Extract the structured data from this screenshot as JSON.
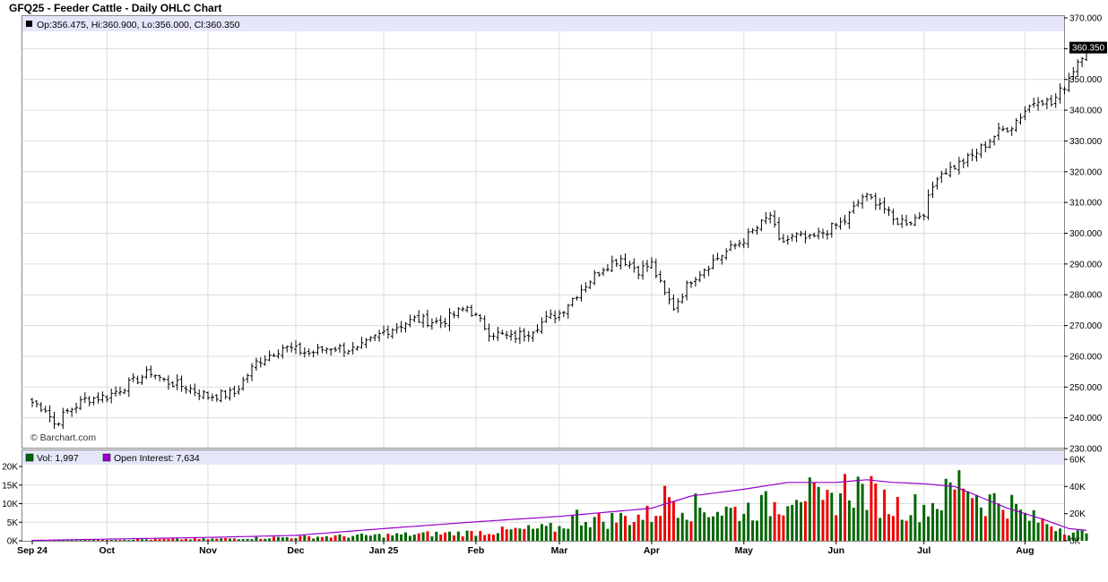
{
  "chart_data": {
    "type": "ohlc",
    "title": "GFQ25 - Feeder Cattle - Daily OHLC Chart",
    "watermark": "© Barchart.com",
    "info_bar": "Op:356.475, Hi:360.900, Lo:356.000, Cl:360.350",
    "last_price_label": "360.350",
    "price_axis": {
      "ylim": [
        230,
        370
      ],
      "ticks": [
        "230.000",
        "240.000",
        "250.000",
        "260.000",
        "270.000",
        "280.000",
        "290.000",
        "300.000",
        "310.000",
        "320.000",
        "330.000",
        "340.000",
        "350.000",
        "360.000",
        "370.000"
      ]
    },
    "x_axis": {
      "months": [
        "Sep 24",
        "Oct",
        "Nov",
        "Dec",
        "Jan 25",
        "Feb",
        "Mar",
        "Apr",
        "May",
        "Jun",
        "Jul",
        "Aug"
      ],
      "month_start_index": [
        0,
        17,
        40,
        60,
        80,
        101,
        120,
        141,
        162,
        183,
        203,
        226
      ]
    },
    "close_series_anchors": [
      [
        0,
        245
      ],
      [
        3,
        243
      ],
      [
        5,
        238
      ],
      [
        8,
        242
      ],
      [
        12,
        246
      ],
      [
        17,
        247
      ],
      [
        22,
        251
      ],
      [
        27,
        255
      ],
      [
        30,
        252
      ],
      [
        35,
        250
      ],
      [
        40,
        247
      ],
      [
        46,
        248
      ],
      [
        51,
        258
      ],
      [
        57,
        263
      ],
      [
        63,
        261
      ],
      [
        68,
        263
      ],
      [
        74,
        262
      ],
      [
        80,
        268
      ],
      [
        87,
        272
      ],
      [
        93,
        271
      ],
      [
        99,
        276
      ],
      [
        104,
        268
      ],
      [
        109,
        266
      ],
      [
        113,
        268
      ],
      [
        117,
        272
      ],
      [
        120,
        274
      ],
      [
        125,
        282
      ],
      [
        130,
        289
      ],
      [
        134,
        292
      ],
      [
        138,
        288
      ],
      [
        141,
        290
      ],
      [
        144,
        280
      ],
      [
        146,
        276
      ],
      [
        150,
        285
      ],
      [
        155,
        291
      ],
      [
        159,
        295
      ],
      [
        162,
        298
      ],
      [
        166,
        303
      ],
      [
        168,
        306
      ],
      [
        170,
        297
      ],
      [
        174,
        299
      ],
      [
        177,
        298
      ],
      [
        181,
        301
      ],
      [
        185,
        304
      ],
      [
        189,
        312
      ],
      [
        193,
        310
      ],
      [
        196,
        304
      ],
      [
        200,
        304
      ],
      [
        203,
        307
      ],
      [
        206,
        319
      ],
      [
        209,
        321
      ],
      [
        214,
        325
      ],
      [
        220,
        333
      ],
      [
        223,
        335
      ],
      [
        226,
        340
      ],
      [
        229,
        344
      ],
      [
        232,
        342
      ],
      [
        235,
        348
      ],
      [
        238,
        356
      ],
      [
        240,
        360.35
      ]
    ],
    "volume_panel": {
      "legend": [
        {
          "name": "Vol: 1,997",
          "color": "#006600"
        },
        {
          "name": "Open Interest: 7,634",
          "color": "#9900cc"
        }
      ],
      "vol_ylim": [
        0,
        20000
      ],
      "vol_ticks": [
        "0K",
        "5K",
        "10K",
        "15K",
        "20K"
      ],
      "oi_ylim": [
        0,
        60000
      ],
      "oi_ticks": [
        "0K",
        "20K",
        "40K",
        "60K"
      ],
      "volume_anchors": [
        [
          0,
          200
        ],
        [
          40,
          500
        ],
        [
          60,
          1000
        ],
        [
          80,
          1500
        ],
        [
          100,
          2200
        ],
        [
          120,
          3500
        ],
        [
          124,
          6500
        ],
        [
          130,
          5500
        ],
        [
          141,
          7000
        ],
        [
          145,
          12500
        ],
        [
          150,
          9000
        ],
        [
          160,
          8000
        ],
        [
          170,
          10000
        ],
        [
          174,
          15500
        ],
        [
          180,
          9000
        ],
        [
          186,
          15000
        ],
        [
          196,
          9500
        ],
        [
          203,
          9000
        ],
        [
          208,
          12000
        ],
        [
          212,
          17000
        ],
        [
          216,
          11000
        ],
        [
          222,
          10500
        ],
        [
          226,
          6500
        ],
        [
          232,
          4500
        ],
        [
          236,
          2500
        ],
        [
          240,
          1997
        ]
      ],
      "oi_anchors": [
        [
          0,
          300
        ],
        [
          40,
          2500
        ],
        [
          60,
          4000
        ],
        [
          80,
          9000
        ],
        [
          101,
          14000
        ],
        [
          120,
          18000
        ],
        [
          141,
          24000
        ],
        [
          150,
          33000
        ],
        [
          162,
          38000
        ],
        [
          172,
          43000
        ],
        [
          183,
          43000
        ],
        [
          190,
          45000
        ],
        [
          196,
          43000
        ],
        [
          203,
          42000
        ],
        [
          210,
          40000
        ],
        [
          216,
          32000
        ],
        [
          222,
          24000
        ],
        [
          230,
          16000
        ],
        [
          236,
          9000
        ],
        [
          240,
          7634
        ]
      ]
    }
  }
}
